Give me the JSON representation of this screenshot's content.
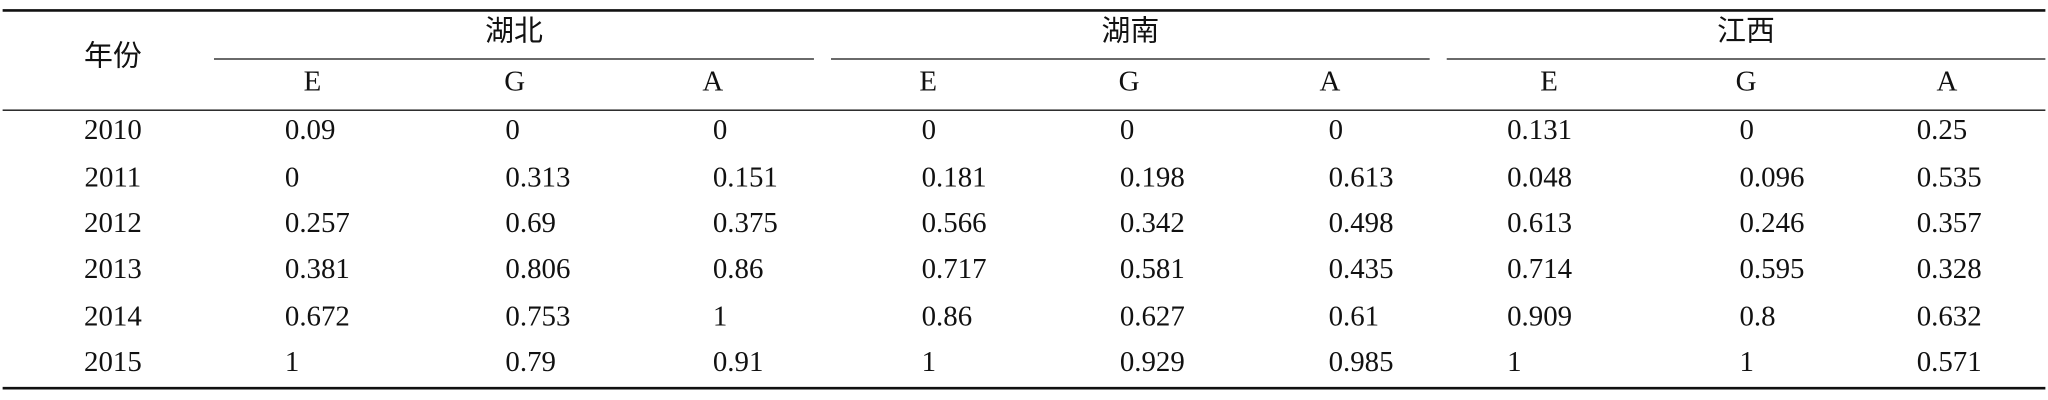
{
  "table": {
    "header": {
      "year": "年份",
      "groups": [
        {
          "name": "湖北",
          "columns": [
            "E",
            "G",
            "A"
          ]
        },
        {
          "name": "湖南",
          "columns": [
            "E",
            "G",
            "A"
          ]
        },
        {
          "name": "江西",
          "columns": [
            "E",
            "G",
            "A"
          ]
        }
      ]
    },
    "rows": [
      {
        "year": "2010",
        "values": [
          "0.09",
          "0",
          "0",
          "0",
          "0",
          "0",
          "0.131",
          "0",
          "0.25"
        ]
      },
      {
        "year": "2011",
        "values": [
          "0",
          "0.313",
          "0.151",
          "0.181",
          "0.198",
          "0.613",
          "0.048",
          "0.096",
          "0.535"
        ]
      },
      {
        "year": "2012",
        "values": [
          "0.257",
          "0.69",
          "0.375",
          "0.566",
          "0.342",
          "0.498",
          "0.613",
          "0.246",
          "0.357"
        ]
      },
      {
        "year": "2013",
        "values": [
          "0.381",
          "0.806",
          "0.86",
          "0.717",
          "0.581",
          "0.435",
          "0.714",
          "0.595",
          "0.328"
        ]
      },
      {
        "year": "2014",
        "values": [
          "0.672",
          "0.753",
          "1",
          "0.86",
          "0.627",
          "0.61",
          "0.909",
          "0.8",
          "0.632"
        ]
      },
      {
        "year": "2015",
        "values": [
          "1",
          "0.79",
          "0.91",
          "1",
          "0.929",
          "0.985",
          "1",
          "1",
          "0.571"
        ]
      }
    ]
  }
}
